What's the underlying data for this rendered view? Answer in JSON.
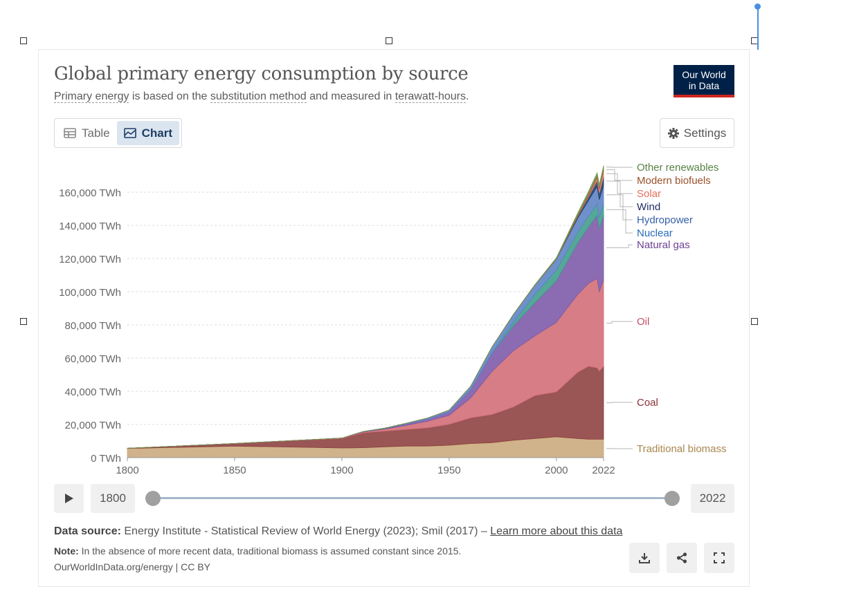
{
  "header": {
    "title": "Global primary energy consumption by source",
    "subtitle_part1": "Primary energy",
    "subtitle_part2": " is based on the ",
    "subtitle_part3": "substitution method",
    "subtitle_part4": " and measured in ",
    "subtitle_part5": "terawatt-hours",
    "subtitle_part6": "."
  },
  "logo": {
    "line1": "Our World",
    "line2": "in Data"
  },
  "tabs": [
    {
      "label": "Table",
      "active": false
    },
    {
      "label": "Chart",
      "active": true
    }
  ],
  "settings": {
    "label": "Settings"
  },
  "timeline": {
    "start_label": "1800",
    "end_label": "2022"
  },
  "footer": {
    "source_label": "Data source:",
    "source_text": " Energy Institute - Statistical Review of World Energy (2023); Smil (2017) – ",
    "source_link": "Learn more about this data",
    "note_label": "Note:",
    "note_text": " In the absence of more recent data, traditional biomass is assumed constant since 2015.",
    "credit": "OurWorldInData.org/energy | CC BY"
  },
  "chart_data": {
    "type": "area",
    "stacked": true,
    "title": "Global primary energy consumption by source",
    "unit": "TWh",
    "x": [
      1800,
      1850,
      1900,
      1910,
      1920,
      1930,
      1940,
      1950,
      1960,
      1970,
      1980,
      1990,
      2000,
      2010,
      2015,
      2019,
      2020,
      2022
    ],
    "xlim": [
      1800,
      2022
    ],
    "x_ticks": [
      "1800",
      "1850",
      "1900",
      "1950",
      "2000",
      "2022"
    ],
    "ylim": [
      0,
      180000
    ],
    "y_ticks": [
      "0 TWh",
      "20,000 TWh",
      "40,000 TWh",
      "60,000 TWh",
      "80,000 TWh",
      "100,000 TWh",
      "120,000 TWh",
      "140,000 TWh",
      "160,000 TWh"
    ],
    "y_tick_values": [
      0,
      20000,
      40000,
      60000,
      80000,
      100000,
      120000,
      140000,
      160000
    ],
    "series": [
      {
        "name": "Traditional biomass",
        "color": "#c9a97a",
        "label_color": "#a8864f",
        "values": [
          5556,
          6944,
          5833,
          6000,
          6500,
          7000,
          7000,
          7500,
          8500,
          9000,
          10500,
          11500,
          12600,
          11500,
          11100,
          11100,
          11100,
          11100
        ]
      },
      {
        "name": "Coal",
        "color": "#8c3e3e",
        "label_color": "#883039",
        "values": [
          97,
          1581,
          5728,
          9000,
          9500,
          10000,
          11000,
          12603,
          15442,
          17000,
          20000,
          25898,
          27000,
          40000,
          44000,
          43000,
          41000,
          44000
        ]
      },
      {
        "name": "Oil",
        "color": "#d06b74",
        "label_color": "#c15065",
        "values": [
          0,
          0,
          181,
          500,
          1200,
          2500,
          4000,
          5444,
          12000,
          26000,
          34000,
          36000,
          42000,
          47000,
          50000,
          54000,
          48000,
          52000
        ]
      },
      {
        "name": "Natural gas",
        "color": "#7b58a8",
        "label_color": "#6d3e91",
        "values": [
          0,
          0,
          64,
          200,
          400,
          800,
          1200,
          2092,
          5000,
          11000,
          15000,
          20000,
          25000,
          31000,
          34000,
          38000,
          38000,
          39000
        ]
      },
      {
        "name": "Nuclear",
        "color": "#3d9b8a",
        "label_color": "#286bbb",
        "values": [
          0,
          0,
          0,
          0,
          0,
          0,
          0,
          0,
          0,
          200,
          2000,
          5000,
          6500,
          6500,
          6500,
          6800,
          6600,
          6800
        ]
      },
      {
        "name": "Hydropower",
        "color": "#5b82c4",
        "label_color": "#3360a9",
        "values": [
          0,
          0,
          0,
          100,
          200,
          400,
          700,
          1000,
          2000,
          3500,
          4800,
          5500,
          6500,
          8500,
          9500,
          10500,
          10800,
          11000
        ]
      },
      {
        "name": "Wind",
        "color": "#213a66",
        "label_color": "#1c2b5f",
        "values": [
          0,
          0,
          0,
          0,
          0,
          0,
          0,
          0,
          0,
          0,
          0,
          10,
          80,
          900,
          2200,
          3500,
          4000,
          5500
        ]
      },
      {
        "name": "Solar",
        "color": "#e87d6e",
        "label_color": "#e56e5a",
        "values": [
          0,
          0,
          0,
          0,
          0,
          0,
          0,
          0,
          0,
          0,
          0,
          0,
          5,
          100,
          700,
          1800,
          2200,
          3500
        ]
      },
      {
        "name": "Modern biofuels",
        "color": "#a35a3c",
        "label_color": "#9a5129",
        "values": [
          0,
          0,
          0,
          0,
          0,
          0,
          0,
          0,
          0,
          0,
          50,
          200,
          300,
          1000,
          1200,
          1350,
          1200,
          1400
        ]
      },
      {
        "name": "Other renewables",
        "color": "#6f9a50",
        "label_color": "#578145",
        "values": [
          0,
          0,
          0,
          0,
          0,
          0,
          0,
          0,
          0,
          0,
          100,
          200,
          500,
          1100,
          1400,
          1600,
          1650,
          1700
        ]
      }
    ]
  }
}
